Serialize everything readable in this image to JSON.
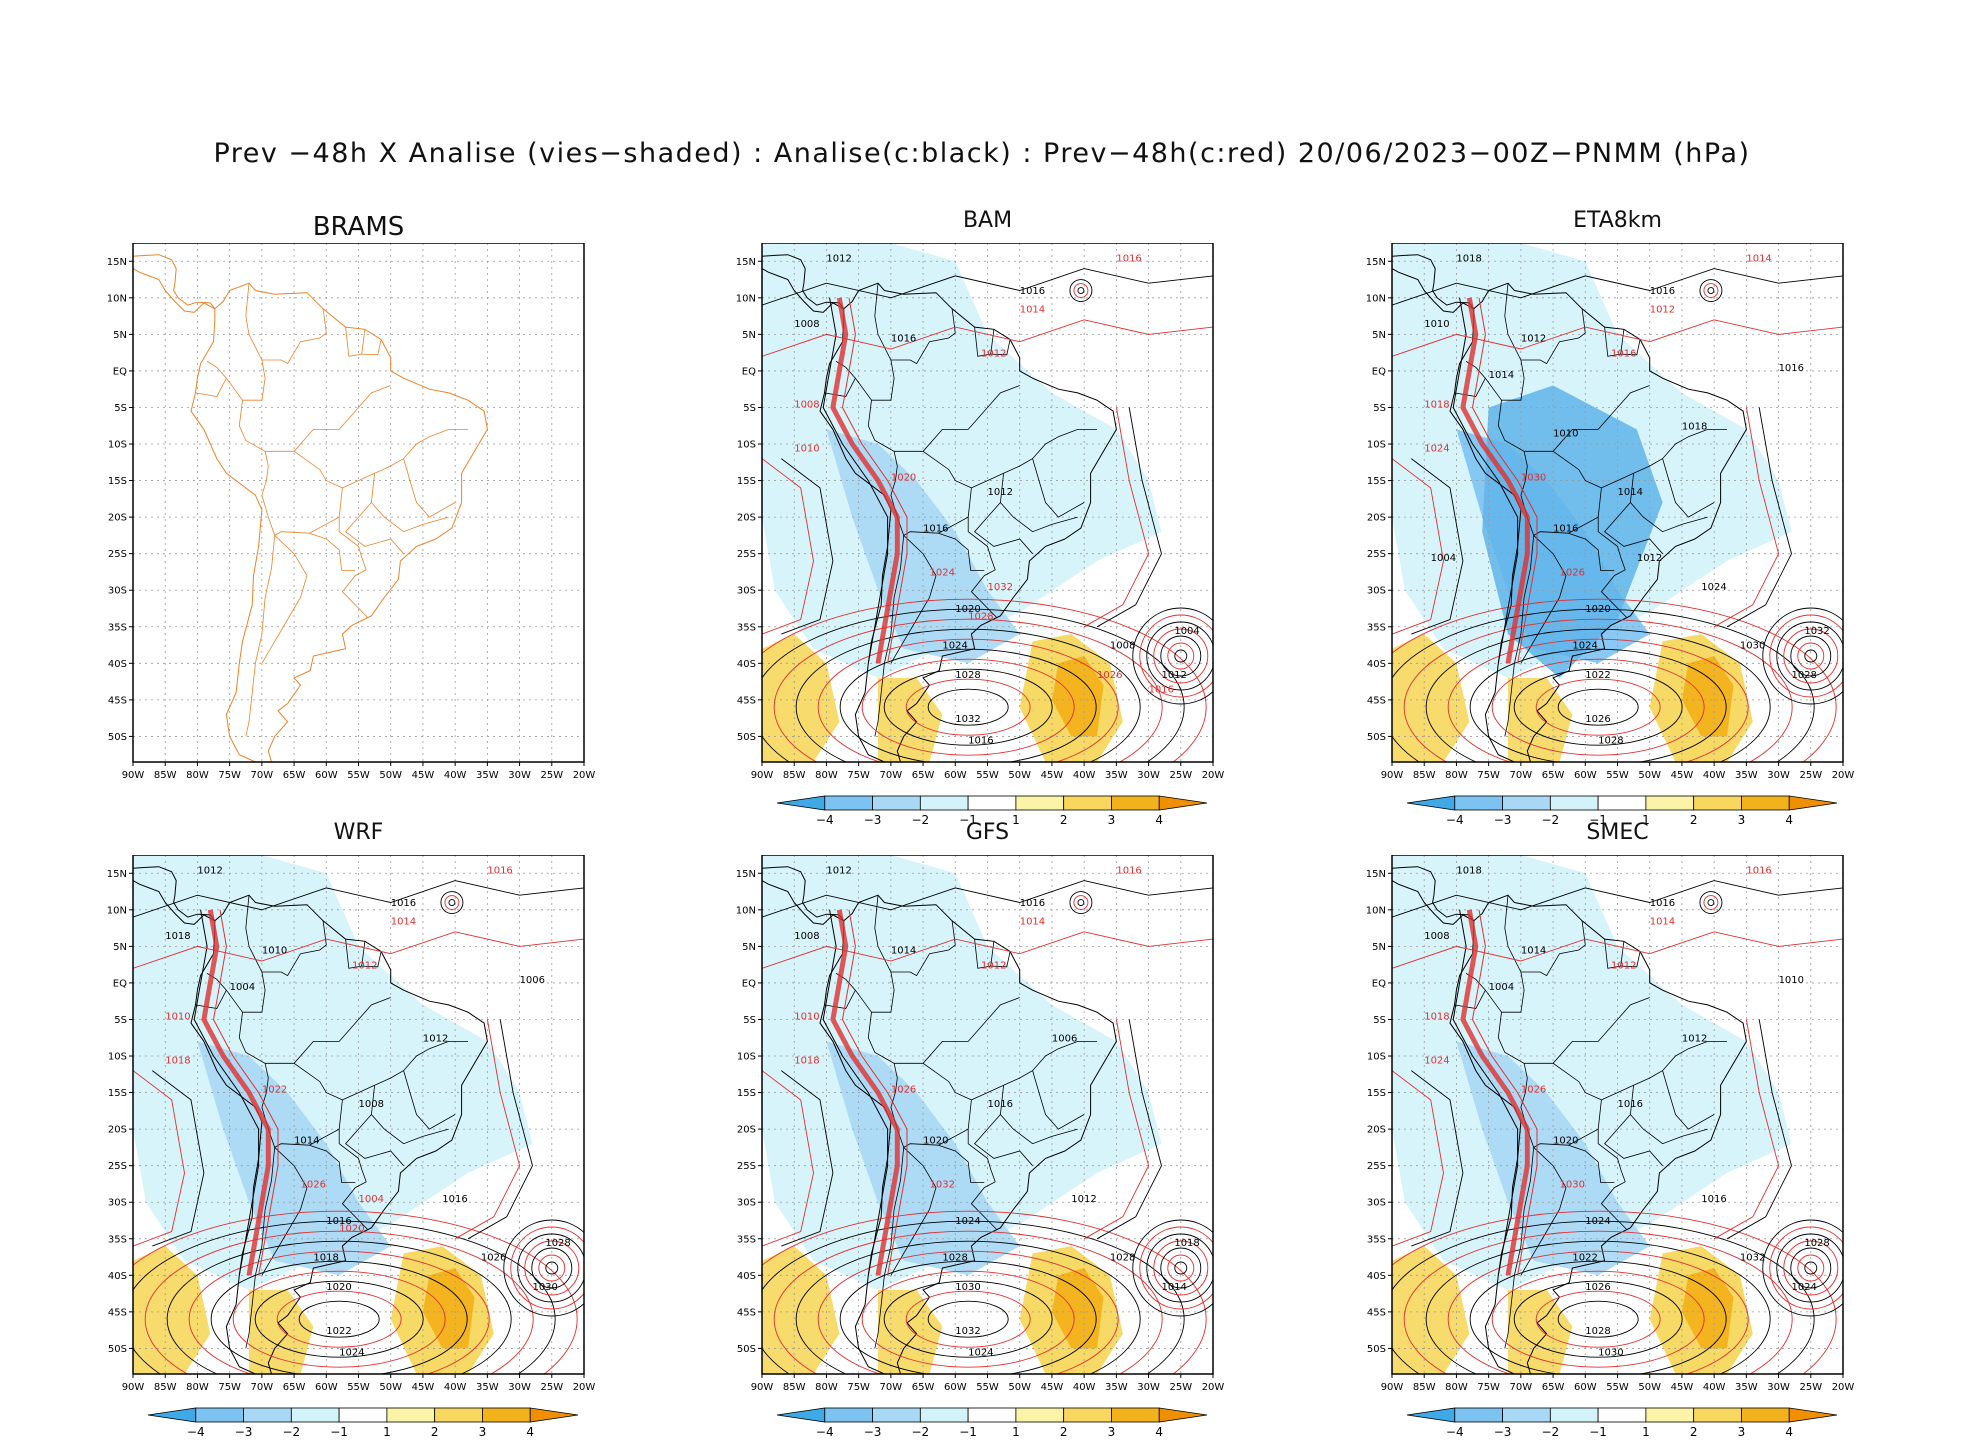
{
  "title": "Prev −48h X Analise (vies−shaded) : Analise(c:black) : Prev−48h(c:red) 20/06/2023−00Z−PNMM (hPa)",
  "lat_labels": [
    "15N",
    "10N",
    "5N",
    "EQ",
    "5S",
    "10S",
    "15S",
    "20S",
    "25S",
    "30S",
    "35S",
    "40S",
    "45S",
    "50S"
  ],
  "lon_labels": [
    "90W",
    "85W",
    "80W",
    "75W",
    "70W",
    "65W",
    "60W",
    "55W",
    "50W",
    "45W",
    "40W",
    "35W",
    "30W",
    "25W",
    "20W"
  ],
  "colorbar": {
    "labels": [
      "−4",
      "−3",
      "−2",
      "−1",
      "1",
      "2",
      "3",
      "4"
    ],
    "colors": [
      "#3fa9e8",
      "#7cc3f2",
      "#a9d8f5",
      "#d3f3fb",
      "#ffffff",
      "#fbf3a6",
      "#f7d75d",
      "#f2b21b",
      "#f09000"
    ]
  },
  "colors": {
    "land_outline": "#e8842a",
    "analysis_contour": "#000000",
    "forecast_contour": "#e03030"
  },
  "panels": [
    {
      "name": "BRAMS",
      "title": "BRAMS",
      "has_colorbar": false,
      "black_labels": [],
      "red_labels": []
    },
    {
      "name": "BAM",
      "title": "BAM",
      "has_colorbar": true,
      "black_labels": [
        "1012",
        "1016",
        "1008",
        "1016",
        "1012",
        "1016",
        "1020",
        "1024",
        "1028",
        "1032",
        "1016",
        "1008",
        "1004",
        "1012"
      ],
      "red_labels": [
        "1016",
        "1014",
        "1012",
        "1008",
        "1010",
        "1020",
        "1024",
        "1028",
        "1032",
        "1026",
        "1016"
      ]
    },
    {
      "name": "ETA8km",
      "title": "ETA8km",
      "has_colorbar": true,
      "black_labels": [
        "1018",
        "1016",
        "1010",
        "1012",
        "1014",
        "1016",
        "1020",
        "1024",
        "1022",
        "1026",
        "1028",
        "1030",
        "1032",
        "1028",
        "1024",
        "1018",
        "1016",
        "1014",
        "1010",
        "1012",
        "1004"
      ],
      "red_labels": [
        "1014",
        "1012",
        "1016",
        "1018",
        "1024",
        "1030",
        "1026"
      ]
    },
    {
      "name": "WRF",
      "title": "WRF",
      "has_colorbar": true,
      "black_labels": [
        "1012",
        "1016",
        "1018",
        "1010",
        "1008",
        "1014",
        "1016",
        "1018",
        "1020",
        "1022",
        "1024",
        "1026",
        "1028",
        "1030",
        "1016",
        "1012",
        "1006",
        "1004"
      ],
      "red_labels": [
        "1016",
        "1014",
        "1012",
        "1010",
        "1018",
        "1022",
        "1026",
        "1020",
        "1004"
      ]
    },
    {
      "name": "GFS",
      "title": "GFS",
      "has_colorbar": true,
      "black_labels": [
        "1012",
        "1016",
        "1008",
        "1014",
        "1016",
        "1020",
        "1024",
        "1028",
        "1030",
        "1032",
        "1024",
        "1028",
        "1018",
        "1014",
        "1012",
        "1006"
      ],
      "red_labels": [
        "1016",
        "1014",
        "1012",
        "1010",
        "1018",
        "1026",
        "1032"
      ]
    },
    {
      "name": "SMEC",
      "title": "SMEC",
      "has_colorbar": true,
      "black_labels": [
        "1018",
        "1016",
        "1008",
        "1014",
        "1016",
        "1020",
        "1024",
        "1022",
        "1026",
        "1028",
        "1030",
        "1032",
        "1028",
        "1024",
        "1016",
        "1012",
        "1010",
        "1004"
      ],
      "red_labels": [
        "1016",
        "1014",
        "1012",
        "1018",
        "1024",
        "1026",
        "1030"
      ]
    }
  ]
}
